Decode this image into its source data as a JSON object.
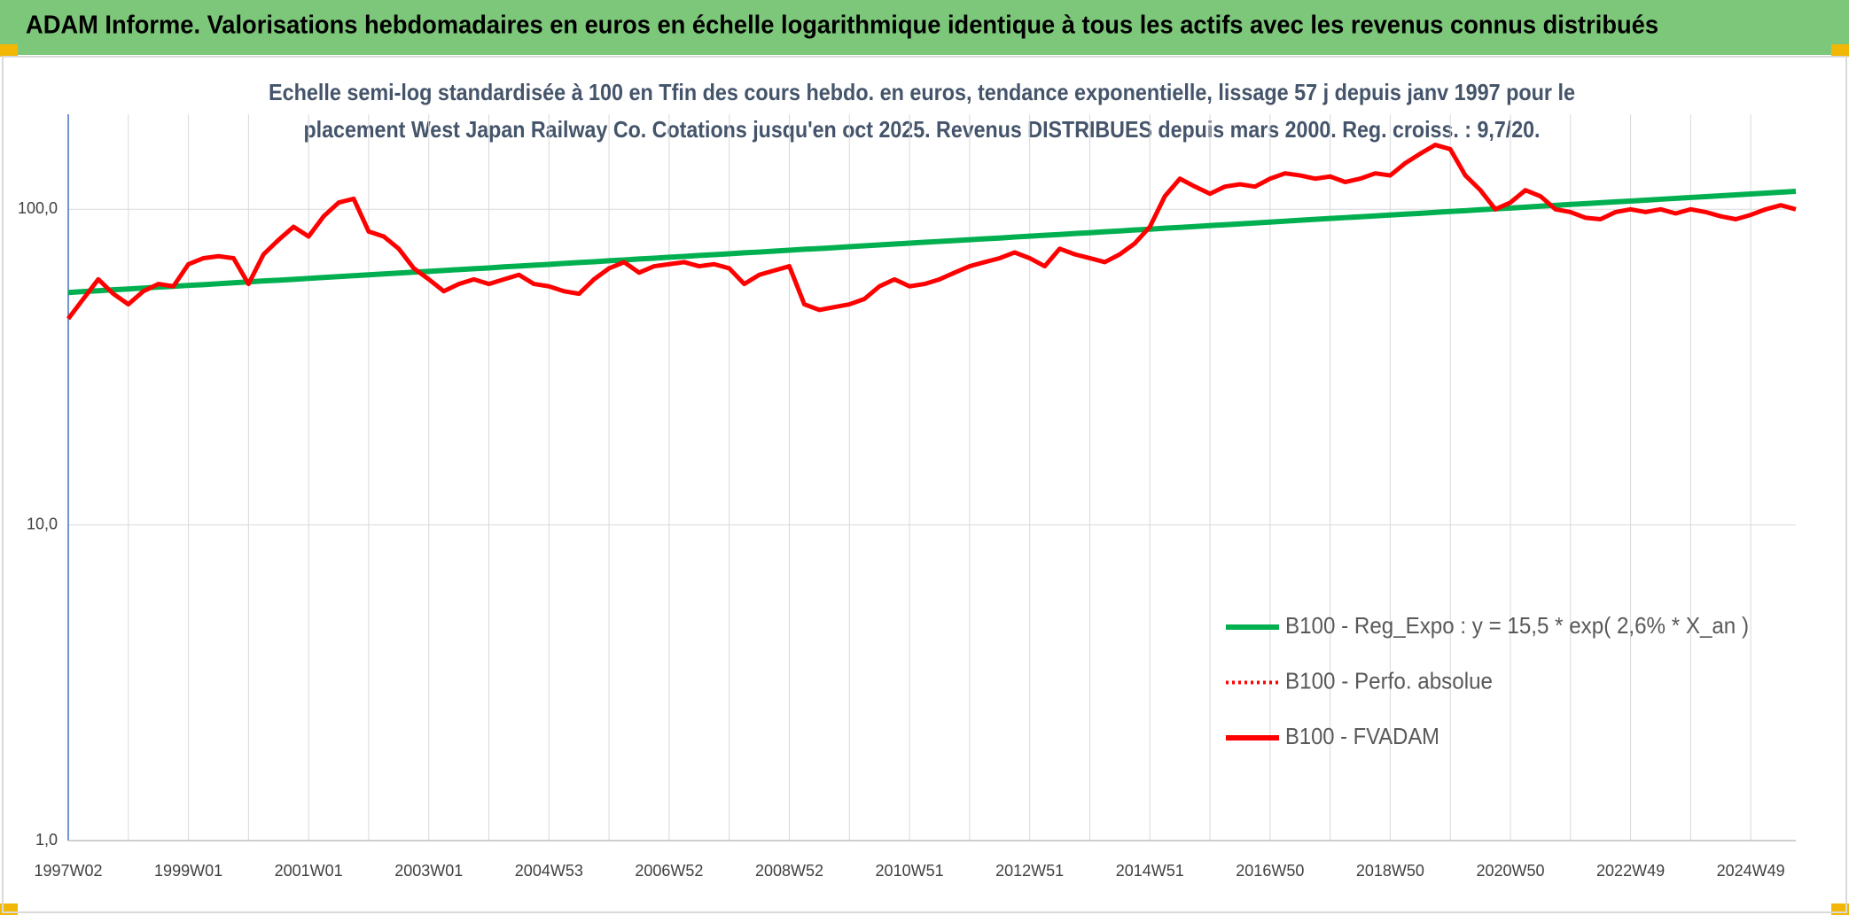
{
  "chart_data": {
    "type": "line",
    "title": "ADAM Informe. Valorisations hebdomadaires en euros en échelle logarithmique identique à tous les actifs avec les revenus connus distribués",
    "subtitle": [
      "Echelle semi-log standardisée à 100 en Tfin des cours hebdo. en euros, tendance exponentielle, lissage 57 j depuis janv 1997 pour le",
      "placement West Japan Railway Co. Cotations jusqu'en oct 2025. Revenus DISTRIBUES depuis mars 2000. Reg. croiss. : 9,7/20."
    ],
    "log_y": true,
    "ylim": [
      1,
      200
    ],
    "yticks": [
      {
        "value": 1,
        "label": "1,0"
      },
      {
        "value": 10,
        "label": "10,0"
      },
      {
        "value": 100,
        "label": "100,0"
      }
    ],
    "grid": true,
    "legend": "right",
    "categories": [
      "1997W02",
      null,
      null,
      null,
      null,
      null,
      null,
      null,
      "1999W01",
      null,
      null,
      null,
      null,
      null,
      null,
      null,
      "2001W01",
      null,
      null,
      null,
      null,
      null,
      null,
      null,
      "2003W01",
      null,
      null,
      null,
      null,
      null,
      null,
      null,
      "2004W53",
      null,
      null,
      null,
      null,
      null,
      null,
      null,
      "2006W52",
      null,
      null,
      null,
      null,
      null,
      null,
      null,
      "2008W52",
      null,
      null,
      null,
      null,
      null,
      null,
      null,
      "2010W51",
      null,
      null,
      null,
      null,
      null,
      null,
      null,
      "2012W51",
      null,
      null,
      null,
      null,
      null,
      null,
      null,
      "2014W51",
      null,
      null,
      null,
      null,
      null,
      null,
      null,
      "2016W50",
      null,
      null,
      null,
      null,
      null,
      null,
      null,
      "2018W50",
      null,
      null,
      null,
      null,
      null,
      null,
      null,
      "2020W50",
      null,
      null,
      null,
      null,
      null,
      null,
      null,
      "2022W49",
      null,
      null,
      null,
      null,
      null,
      null,
      null,
      "2024W49",
      null,
      null,
      null
    ],
    "series": [
      {
        "name": "B100 - Reg_Expo : y = 15,5 * exp( 2,6% *  X_an )",
        "color": "#00b050",
        "style": "solid",
        "values": [
          54.5,
          54.9,
          55.2,
          55.6,
          55.9,
          56.3,
          56.7,
          57.0,
          57.4,
          57.7,
          58.1,
          58.5,
          58.9,
          59.3,
          59.6,
          60.0,
          60.4,
          60.8,
          61.2,
          61.6,
          62.0,
          62.4,
          62.8,
          63.2,
          63.6,
          64.0,
          64.4,
          64.8,
          65.2,
          65.7,
          66.1,
          66.5,
          66.9,
          67.4,
          67.8,
          68.2,
          68.7,
          69.1,
          69.6,
          70.0,
          70.5,
          70.9,
          71.4,
          71.8,
          72.3,
          72.8,
          73.2,
          73.7,
          74.2,
          74.7,
          75.1,
          75.6,
          76.1,
          76.6,
          77.1,
          77.6,
          78.1,
          78.6,
          79.1,
          79.6,
          80.1,
          80.6,
          81.1,
          81.7,
          82.2,
          82.7,
          83.2,
          83.8,
          84.3,
          84.9,
          85.4,
          86.0,
          86.5,
          87.1,
          87.6,
          88.2,
          88.8,
          89.3,
          89.9,
          90.5,
          91.1,
          91.7,
          92.3,
          92.9,
          93.5,
          94.1,
          94.7,
          95.3,
          95.9,
          96.5,
          97.1,
          97.8,
          98.4,
          99.0,
          99.7,
          100.3,
          100.9,
          101.6,
          102.3,
          102.9,
          103.6,
          104.2,
          104.9,
          105.6,
          106.2,
          106.9,
          107.6,
          108.3,
          109.0,
          109.7,
          110.4,
          111.1,
          111.8,
          112.5,
          113.3,
          114.0
        ]
      },
      {
        "name": "B100 - Perfo. absolue",
        "color": "#ff0000",
        "style": "dotted",
        "values": [
          null,
          null,
          null,
          null,
          null,
          null,
          null,
          null,
          null,
          null,
          null,
          null,
          null,
          null,
          null,
          null,
          null,
          null,
          null,
          null,
          null,
          null,
          null,
          null,
          null,
          null,
          null,
          null,
          null,
          null,
          null,
          null,
          null,
          null,
          null,
          null,
          null,
          null,
          null,
          null,
          null,
          null,
          null,
          null,
          null,
          null,
          null,
          null,
          null,
          null,
          null,
          null,
          null,
          null,
          null,
          null,
          null,
          null,
          null,
          null,
          null,
          null,
          null,
          null,
          null,
          null,
          null,
          null,
          null,
          null,
          null,
          null,
          null,
          null,
          null,
          null,
          null,
          null,
          null,
          null,
          null,
          null,
          null,
          null,
          null,
          null,
          null,
          null,
          null,
          null,
          null,
          null,
          null,
          null,
          null,
          null,
          null,
          null,
          null,
          null,
          null,
          null,
          null,
          null,
          null,
          null,
          null,
          null,
          null,
          null,
          null,
          null,
          null,
          null,
          null,
          null
        ]
      },
      {
        "name": "B100 - FVADAM",
        "color": "#ff0000",
        "style": "solid",
        "values": [
          45,
          52,
          60,
          54,
          50,
          55,
          58,
          57,
          67,
          70,
          71,
          70,
          58,
          72,
          80,
          88,
          82,
          95,
          105,
          108,
          85,
          82,
          75,
          65,
          60,
          55,
          58,
          60,
          58,
          60,
          62,
          58,
          57,
          55,
          54,
          60,
          65,
          68,
          63,
          66,
          67,
          68,
          66,
          67,
          65,
          58,
          62,
          64,
          66,
          50,
          48,
          49,
          50,
          52,
          57,
          60,
          57,
          58,
          60,
          63,
          66,
          68,
          70,
          73,
          70,
          66,
          75,
          72,
          70,
          68,
          72,
          78,
          88,
          110,
          125,
          118,
          112,
          118,
          120,
          118,
          125,
          130,
          128,
          125,
          127,
          122,
          125,
          130,
          128,
          140,
          150,
          160,
          155,
          128,
          115,
          100,
          105,
          115,
          110,
          100,
          98,
          94,
          93,
          98,
          100,
          98,
          100,
          97,
          100,
          98,
          95,
          93,
          96,
          100,
          103,
          100
        ]
      }
    ]
  }
}
